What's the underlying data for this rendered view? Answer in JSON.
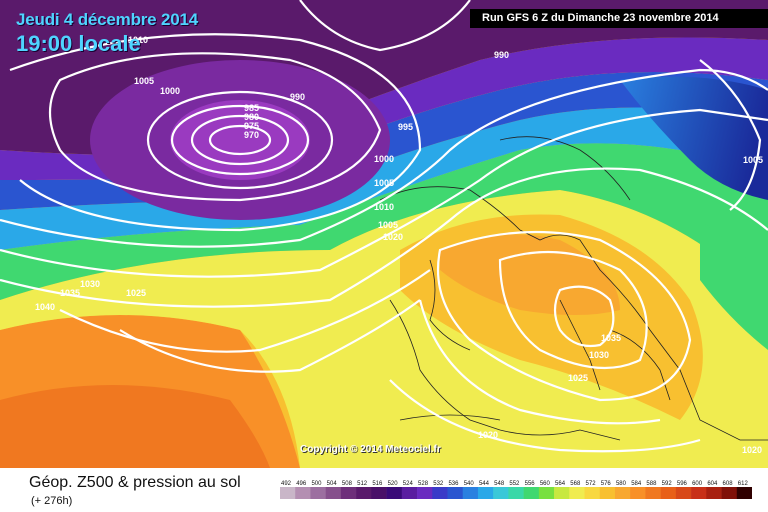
{
  "header": {
    "date": "Jeudi 4 décembre 2014",
    "time": "19:00 locale",
    "run": "Run GFS 6 Z du Dimanche 23 novembre 2014"
  },
  "footer": {
    "copyright": "Copyright © 2014 Meteociel.fr",
    "title": "Géop. Z500 & pression au sol",
    "subtitle": "(+ 276h)"
  },
  "scale": {
    "labels": [
      "492",
      "496",
      "500",
      "504",
      "508",
      "512",
      "516",
      "520",
      "524",
      "528",
      "532",
      "536",
      "540",
      "544",
      "548",
      "552",
      "556",
      "560",
      "564",
      "568",
      "572",
      "576",
      "580",
      "584",
      "588",
      "592",
      "596",
      "600",
      "604",
      "608",
      "612"
    ],
    "colors": [
      "#c9b6c8",
      "#b48fb2",
      "#9c6fa0",
      "#86508c",
      "#6e2f7a",
      "#5a1a6b",
      "#4a1068",
      "#3a0a78",
      "#5a1da0",
      "#6a2bc0",
      "#3a3ac8",
      "#2a55d0",
      "#2a80e0",
      "#2aa8e8",
      "#3ac8d8",
      "#3ad8a8",
      "#40d870",
      "#78e040",
      "#c8e840",
      "#f0ec50",
      "#f8d840",
      "#f8c030",
      "#f8a830",
      "#f89028",
      "#f07820",
      "#e86018",
      "#d84818",
      "#c83018",
      "#a82010",
      "#801008",
      "#300000"
    ]
  },
  "map": {
    "colors": {
      "deep_purple": "#4a0a66",
      "purple": "#6a1a8a",
      "violet": "#8a2ab8",
      "blue": "#2a55d0",
      "cyan": "#2aa8e8",
      "green": "#40d870",
      "yellow": "#f0ec50",
      "orange": "#f8a830",
      "red_orange": "#f07820"
    },
    "isobar_labels": [
      "1010",
      "1005",
      "1000",
      "985",
      "980",
      "975",
      "970",
      "965",
      "990",
      "990",
      "995",
      "1000",
      "1005",
      "1010",
      "1005",
      "1020",
      "1030",
      "1035",
      "1040",
      "1025",
      "1035",
      "1030",
      "1025",
      "1020",
      "1005",
      "1020"
    ]
  }
}
